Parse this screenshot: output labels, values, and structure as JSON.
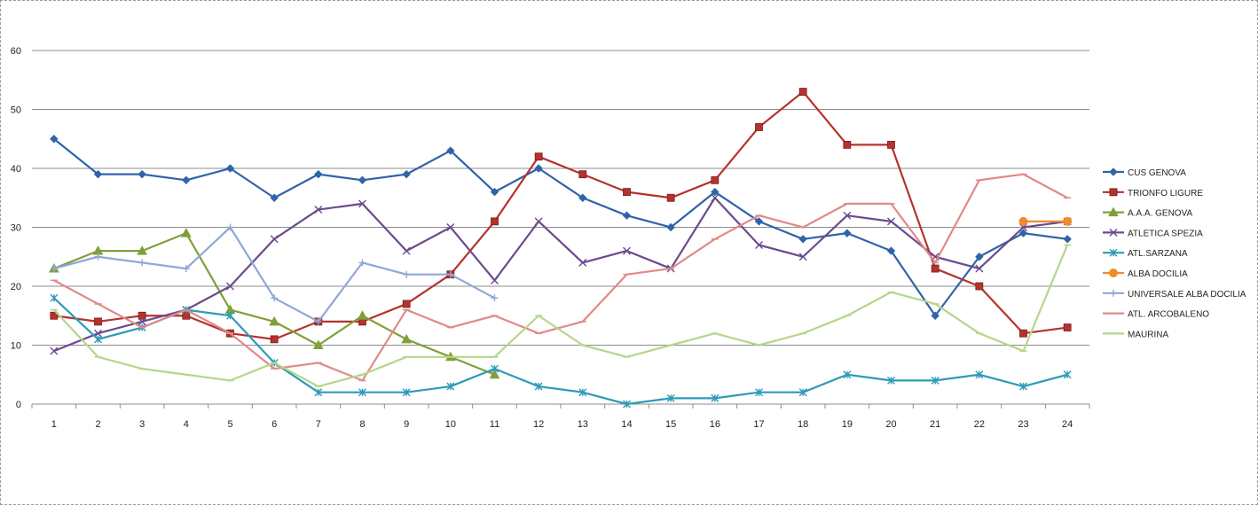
{
  "chart_data": {
    "type": "line",
    "title": "",
    "xlabel": "",
    "ylabel": "",
    "ylim": [
      0,
      60
    ],
    "yticks": [
      0,
      10,
      20,
      30,
      40,
      50,
      60
    ],
    "grid": true,
    "legend_position": "right",
    "x": [
      1,
      2,
      3,
      4,
      5,
      6,
      7,
      8,
      9,
      10,
      11,
      12,
      13,
      14,
      15,
      16,
      17,
      18,
      19,
      20,
      21,
      22,
      23,
      24
    ],
    "series": [
      {
        "name": "CUS GENOVA",
        "color": "#2f64a8",
        "marker": "diamond",
        "values": [
          45,
          39,
          39,
          38,
          40,
          35,
          39,
          38,
          39,
          43,
          36,
          40,
          35,
          32,
          30,
          36,
          31,
          28,
          29,
          26,
          15,
          25,
          29,
          28
        ]
      },
      {
        "name": "TRIONFO LIGURE",
        "color": "#b5322e",
        "marker": "square",
        "values": [
          15,
          14,
          15,
          15,
          12,
          11,
          14,
          14,
          17,
          22,
          31,
          42,
          39,
          36,
          35,
          38,
          47,
          53,
          44,
          44,
          23,
          20,
          12,
          13
        ]
      },
      {
        "name": "A.A.A. GENOVA",
        "color": "#7fa03a",
        "marker": "triangle",
        "values": [
          23,
          26,
          26,
          29,
          16,
          14,
          10,
          15,
          11,
          8,
          5,
          null,
          null,
          null,
          null,
          null,
          null,
          null,
          null,
          null,
          null,
          null,
          null,
          null
        ]
      },
      {
        "name": "ATLETICA SPEZIA",
        "color": "#6b4a8e",
        "marker": "x",
        "values": [
          9,
          12,
          14,
          16,
          20,
          28,
          33,
          34,
          26,
          30,
          21,
          31,
          24,
          26,
          23,
          35,
          27,
          25,
          32,
          31,
          25,
          23,
          30,
          31
        ]
      },
      {
        "name": "ATL.SARZANA",
        "color": "#2f9ab8",
        "marker": "star",
        "values": [
          18,
          11,
          13,
          16,
          15,
          7,
          2,
          2,
          2,
          3,
          6,
          3,
          2,
          0,
          1,
          1,
          2,
          2,
          5,
          4,
          4,
          5,
          3,
          5
        ]
      },
      {
        "name": "ALBA DOCILIA",
        "color": "#f08a2c",
        "marker": "circle",
        "values": [
          null,
          null,
          null,
          null,
          null,
          null,
          null,
          null,
          null,
          null,
          null,
          null,
          null,
          null,
          null,
          null,
          null,
          null,
          null,
          null,
          null,
          null,
          31,
          31
        ]
      },
      {
        "name": "UNIVERSALE ALBA DOCILIA",
        "color": "#8fa7d8",
        "marker": "plus",
        "values": [
          23,
          25,
          24,
          23,
          30,
          18,
          14,
          24,
          22,
          22,
          18,
          null,
          null,
          null,
          null,
          null,
          null,
          null,
          null,
          null,
          null,
          null,
          null,
          null
        ]
      },
      {
        "name": "ATL. ARCOBALENO",
        "color": "#e08a88",
        "marker": "dash",
        "values": [
          21,
          17,
          13,
          16,
          12,
          6,
          7,
          4,
          16,
          13,
          15,
          12,
          14,
          22,
          23,
          28,
          32,
          30,
          34,
          34,
          24,
          38,
          39,
          35
        ]
      },
      {
        "name": "MAURINA",
        "color": "#b6d68a",
        "marker": "dash",
        "values": [
          16,
          8,
          6,
          5,
          4,
          7,
          3,
          5,
          8,
          8,
          8,
          15,
          10,
          8,
          10,
          12,
          10,
          12,
          15,
          19,
          17,
          12,
          9,
          27
        ]
      }
    ]
  }
}
